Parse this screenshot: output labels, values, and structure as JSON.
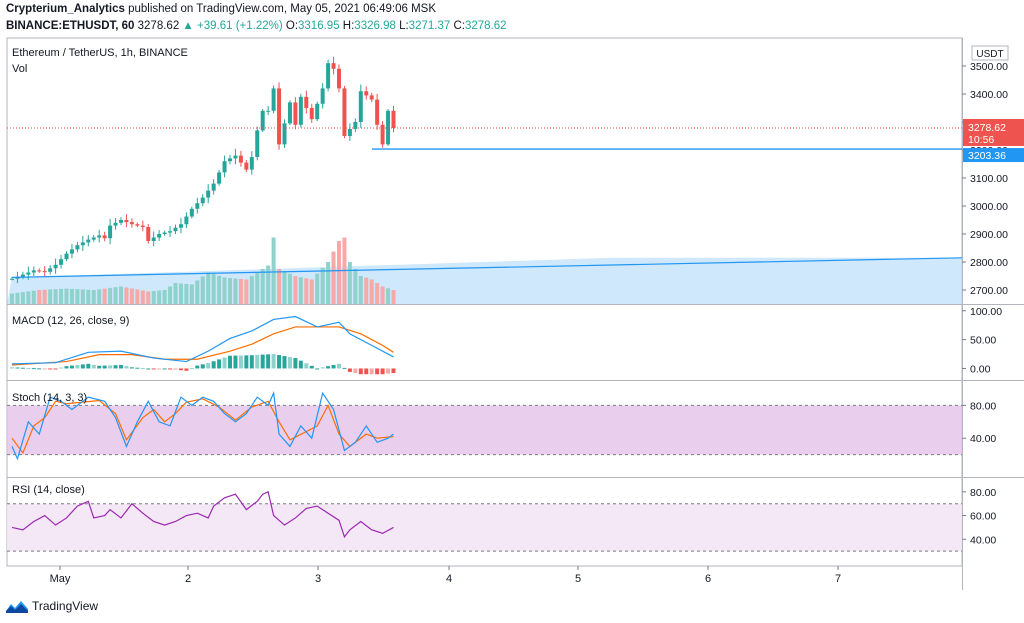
{
  "header": {
    "line1_author": "Crypterium_Analytics",
    "line1_rest": "published on TradingView.com, May 05, 2021 06:49:06 MSK",
    "line2_symbol": "BINANCE:ETHUSDT, 60",
    "line2_last": "3278.62",
    "line2_change": "▲ +39.61 (+1.22%)",
    "line2_o": "O:",
    "line2_o_val": "3316.95",
    "line2_h": "H:",
    "line2_h_val": "3326.98",
    "line2_l": "L:",
    "line2_l_val": "3271.37",
    "line2_c": "C:",
    "line2_c_val": "3278.62"
  },
  "colors": {
    "up": "#26a69a",
    "down": "#ef5350",
    "up_vol": "#8fd2cc",
    "down_vol": "#f7a9a7",
    "macd_line": "#2196f3",
    "signal_line": "#ff6d00",
    "stoch_k": "#2196f3",
    "stoch_d": "#ff6d00",
    "rsi_line": "#9c27b0",
    "trend_line": "#2196f3",
    "band_fill": "#e1bee7"
  },
  "main_pane": {
    "title": "Ethereum / TetherUS, 1h, BINANCE",
    "vol_label": "Vol",
    "currency": "USDT",
    "last_price": "3278.62",
    "countdown": "10:56",
    "support_price": "3203.36",
    "price_ticks": [
      "3500.00",
      "3400.00",
      "3300.00",
      "3200.00",
      "3100.00",
      "3000.00",
      "2900.00",
      "2800.00",
      "2700.00"
    ]
  },
  "macd_pane": {
    "title": "MACD (12, 26, close, 9)",
    "ticks": [
      "100.00",
      "50.00",
      "0.00"
    ]
  },
  "stoch_pane": {
    "title": "Stoch (14, 3, 3)",
    "ticks": [
      "80.00",
      "40.00"
    ]
  },
  "rsi_pane": {
    "title": "RSI (14, close)",
    "ticks": [
      "80.00",
      "60.00",
      "40.00"
    ]
  },
  "time_axis": {
    "labels": [
      "May",
      "2",
      "3",
      "4",
      "5",
      "6",
      "7"
    ]
  },
  "footer": {
    "brand": "TradingView"
  },
  "chart_data": {
    "type": "candlestick",
    "title": "Ethereum / TetherUS, 1h, BINANCE",
    "interval": "1h",
    "ylim": [
      2650,
      3600
    ],
    "x_labels": [
      "May",
      "2",
      "3",
      "4",
      "5",
      "6",
      "7"
    ],
    "price_path": [
      [
        0,
        2740
      ],
      [
        2,
        2755
      ],
      [
        4,
        2770
      ],
      [
        6,
        2765
      ],
      [
        8,
        2790
      ],
      [
        10,
        2830
      ],
      [
        12,
        2860
      ],
      [
        14,
        2880
      ],
      [
        16,
        2895
      ],
      [
        17,
        2885
      ],
      [
        18,
        2930
      ],
      [
        20,
        2950
      ],
      [
        22,
        2935
      ],
      [
        24,
        2925
      ],
      [
        25,
        2875
      ],
      [
        27,
        2900
      ],
      [
        29,
        2910
      ],
      [
        31,
        2935
      ],
      [
        33,
        2990
      ],
      [
        35,
        3030
      ],
      [
        37,
        3080
      ],
      [
        39,
        3160
      ],
      [
        41,
        3180
      ],
      [
        43,
        3130
      ],
      [
        44,
        3175
      ],
      [
        45,
        3270
      ],
      [
        46,
        3340
      ],
      [
        47,
        3340
      ],
      [
        48,
        3420
      ],
      [
        49,
        3220
      ],
      [
        51,
        3370
      ],
      [
        52,
        3290
      ],
      [
        53,
        3390
      ],
      [
        55,
        3310
      ],
      [
        57,
        3420
      ],
      [
        58,
        3510
      ],
      [
        59,
        3490
      ],
      [
        60,
        3420
      ],
      [
        61,
        3250
      ],
      [
        63,
        3300
      ],
      [
        64,
        3410
      ],
      [
        66,
        3380
      ],
      [
        67,
        3290
      ],
      [
        68,
        3220
      ],
      [
        69,
        3340
      ],
      [
        70,
        3278.62
      ]
    ],
    "volume_path": [
      [
        0,
        0.15
      ],
      [
        5,
        0.2
      ],
      [
        10,
        0.22
      ],
      [
        15,
        0.2
      ],
      [
        20,
        0.25
      ],
      [
        25,
        0.18
      ],
      [
        28,
        0.2
      ],
      [
        30,
        0.3
      ],
      [
        33,
        0.28
      ],
      [
        36,
        0.45
      ],
      [
        39,
        0.38
      ],
      [
        43,
        0.35
      ],
      [
        46,
        0.5
      ],
      [
        47,
        0.55
      ],
      [
        48,
        0.95
      ],
      [
        49,
        0.5
      ],
      [
        52,
        0.4
      ],
      [
        55,
        0.35
      ],
      [
        58,
        0.6
      ],
      [
        60,
        0.9
      ],
      [
        61,
        0.95
      ],
      [
        62,
        0.6
      ],
      [
        64,
        0.4
      ],
      [
        66,
        0.35
      ],
      [
        68,
        0.25
      ],
      [
        70,
        0.2
      ]
    ],
    "support_level": 3203.36,
    "last_price": 3278.62,
    "trendline": {
      "from": [
        0,
        2745
      ],
      "to": [
        110,
        2815
      ]
    },
    "macd": {
      "ylim": [
        -20,
        110
      ],
      "macd_path": [
        [
          0,
          8
        ],
        [
          8,
          10
        ],
        [
          14,
          28
        ],
        [
          20,
          30
        ],
        [
          26,
          18
        ],
        [
          32,
          12
        ],
        [
          36,
          30
        ],
        [
          40,
          52
        ],
        [
          44,
          65
        ],
        [
          48,
          85
        ],
        [
          52,
          90
        ],
        [
          56,
          72
        ],
        [
          60,
          80
        ],
        [
          62,
          60
        ],
        [
          66,
          40
        ],
        [
          70,
          20
        ]
      ],
      "signal_path": [
        [
          0,
          6
        ],
        [
          10,
          12
        ],
        [
          16,
          24
        ],
        [
          22,
          24
        ],
        [
          28,
          16
        ],
        [
          34,
          16
        ],
        [
          40,
          30
        ],
        [
          44,
          42
        ],
        [
          48,
          60
        ],
        [
          52,
          72
        ],
        [
          56,
          72
        ],
        [
          60,
          72
        ],
        [
          64,
          60
        ],
        [
          68,
          40
        ],
        [
          70,
          28
        ]
      ]
    },
    "stoch": {
      "ylim": [
        0,
        100
      ],
      "k_path": [
        [
          0,
          30
        ],
        [
          1,
          15
        ],
        [
          3,
          60
        ],
        [
          5,
          45
        ],
        [
          7,
          90
        ],
        [
          9,
          85
        ],
        [
          11,
          75
        ],
        [
          14,
          90
        ],
        [
          17,
          85
        ],
        [
          19,
          65
        ],
        [
          21,
          30
        ],
        [
          23,
          60
        ],
        [
          25,
          85
        ],
        [
          27,
          60
        ],
        [
          29,
          55
        ],
        [
          31,
          90
        ],
        [
          33,
          80
        ],
        [
          35,
          90
        ],
        [
          37,
          85
        ],
        [
          39,
          70
        ],
        [
          41,
          60
        ],
        [
          43,
          70
        ],
        [
          45,
          90
        ],
        [
          47,
          80
        ],
        [
          48,
          95
        ],
        [
          49,
          45
        ],
        [
          51,
          30
        ],
        [
          53,
          55
        ],
        [
          55,
          40
        ],
        [
          57,
          95
        ],
        [
          59,
          75
        ],
        [
          61,
          25
        ],
        [
          63,
          35
        ],
        [
          65,
          55
        ],
        [
          67,
          35
        ],
        [
          69,
          40
        ],
        [
          70,
          45
        ]
      ],
      "d_path": [
        [
          0,
          40
        ],
        [
          2,
          22
        ],
        [
          4,
          55
        ],
        [
          6,
          65
        ],
        [
          8,
          85
        ],
        [
          10,
          82
        ],
        [
          13,
          84
        ],
        [
          16,
          86
        ],
        [
          19,
          70
        ],
        [
          21,
          38
        ],
        [
          24,
          65
        ],
        [
          26,
          75
        ],
        [
          28,
          60
        ],
        [
          30,
          70
        ],
        [
          32,
          84
        ],
        [
          35,
          88
        ],
        [
          38,
          78
        ],
        [
          41,
          62
        ],
        [
          44,
          78
        ],
        [
          47,
          85
        ],
        [
          49,
          60
        ],
        [
          51,
          38
        ],
        [
          54,
          48
        ],
        [
          56,
          55
        ],
        [
          58,
          80
        ],
        [
          60,
          45
        ],
        [
          62,
          30
        ],
        [
          65,
          45
        ],
        [
          67,
          40
        ],
        [
          70,
          42
        ]
      ]
    },
    "rsi": {
      "ylim": [
        20,
        90
      ],
      "rsi_path": [
        [
          0,
          50
        ],
        [
          2,
          48
        ],
        [
          4,
          55
        ],
        [
          6,
          60
        ],
        [
          8,
          52
        ],
        [
          10,
          58
        ],
        [
          12,
          68
        ],
        [
          14,
          72
        ],
        [
          15,
          58
        ],
        [
          17,
          60
        ],
        [
          18,
          65
        ],
        [
          20,
          58
        ],
        [
          22,
          70
        ],
        [
          24,
          62
        ],
        [
          26,
          55
        ],
        [
          28,
          52
        ],
        [
          30,
          55
        ],
        [
          32,
          60
        ],
        [
          34,
          62
        ],
        [
          36,
          58
        ],
        [
          37,
          68
        ],
        [
          39,
          75
        ],
        [
          41,
          78
        ],
        [
          43,
          65
        ],
        [
          45,
          72
        ],
        [
          46,
          78
        ],
        [
          47,
          80
        ],
        [
          48,
          60
        ],
        [
          50,
          52
        ],
        [
          52,
          58
        ],
        [
          54,
          66
        ],
        [
          56,
          68
        ],
        [
          58,
          62
        ],
        [
          60,
          56
        ],
        [
          61,
          42
        ],
        [
          62,
          48
        ],
        [
          64,
          55
        ],
        [
          66,
          48
        ],
        [
          68,
          45
        ],
        [
          70,
          50
        ]
      ]
    }
  }
}
